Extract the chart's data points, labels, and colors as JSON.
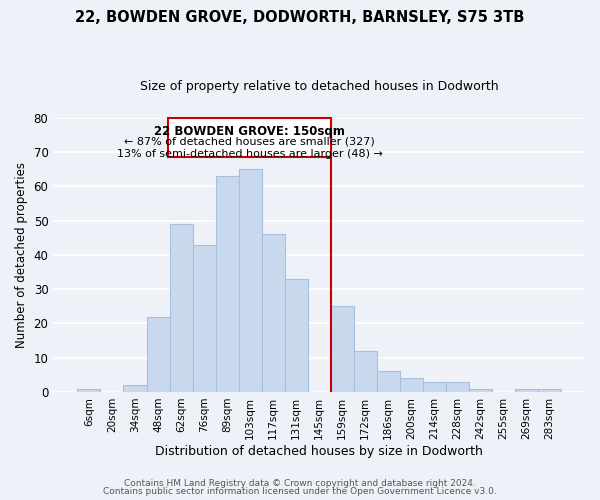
{
  "title": "22, BOWDEN GROVE, DODWORTH, BARNSLEY, S75 3TB",
  "subtitle": "Size of property relative to detached houses in Dodworth",
  "xlabel": "Distribution of detached houses by size in Dodworth",
  "ylabel": "Number of detached properties",
  "bar_labels": [
    "6sqm",
    "20sqm",
    "34sqm",
    "48sqm",
    "62sqm",
    "76sqm",
    "89sqm",
    "103sqm",
    "117sqm",
    "131sqm",
    "145sqm",
    "159sqm",
    "172sqm",
    "186sqm",
    "200sqm",
    "214sqm",
    "228sqm",
    "242sqm",
    "255sqm",
    "269sqm",
    "283sqm"
  ],
  "bar_values": [
    1,
    0,
    2,
    22,
    49,
    43,
    63,
    65,
    46,
    33,
    0,
    25,
    12,
    6,
    4,
    3,
    3,
    1,
    0,
    1,
    1
  ],
  "bar_color": "#c8d9ee",
  "bar_edge_color": "#a8c0dd",
  "ylim": [
    0,
    80
  ],
  "yticks": [
    0,
    10,
    20,
    30,
    40,
    50,
    60,
    70,
    80
  ],
  "vline_color": "#cc0000",
  "annotation_title": "22 BOWDEN GROVE: 150sqm",
  "annotation_line1": "← 87% of detached houses are smaller (327)",
  "annotation_line2": "13% of semi-detached houses are larger (48) →",
  "footer1": "Contains HM Land Registry data © Crown copyright and database right 2024.",
  "footer2": "Contains public sector information licensed under the Open Government Licence v3.0.",
  "bg_color": "#eef2f8",
  "grid_color": "white"
}
